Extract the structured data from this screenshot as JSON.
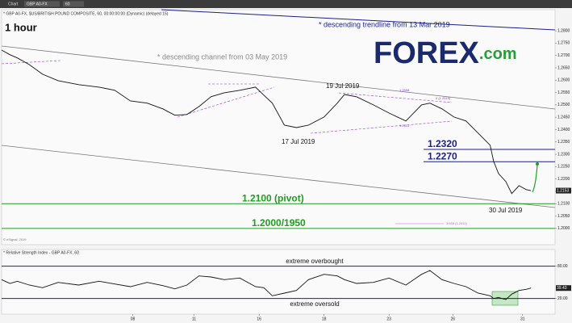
{
  "toolbar": {
    "items": [
      "Chart",
      "GBP A0-FX",
      "60"
    ]
  },
  "logo": {
    "brand": "FOREX",
    "suffix": ".com"
  },
  "chart_data": [
    {
      "type": "line",
      "header": "* GBP A0-FX, $US/BRITISH POUND COMPOSITE, 60, 00:00:00:00 (Dynamic) (delayed 15)",
      "title": "1 hour",
      "x": [
        0,
        7,
        13,
        23,
        34,
        47,
        64,
        81,
        94,
        107,
        121,
        134,
        144,
        154,
        164,
        174,
        185,
        198,
        211,
        218,
        225,
        235,
        245,
        255,
        268,
        279,
        285,
        295,
        309,
        322,
        336,
        349,
        356,
        366,
        376,
        386,
        396,
        406,
        409,
        413,
        419,
        424,
        430,
        436,
        440
      ],
      "series": [
        {
          "color": "#111111",
          "values": [
            1.2722,
            1.2703,
            1.269,
            1.2663,
            1.2624,
            1.2598,
            1.2582,
            1.2572,
            1.2559,
            1.2516,
            1.2507,
            1.2484,
            1.2458,
            1.2461,
            1.2493,
            1.2533,
            1.2549,
            1.2559,
            1.2572,
            1.2539,
            1.2507,
            1.2418,
            1.2408,
            1.2418,
            1.2451,
            1.2507,
            1.2542,
            1.2533,
            1.25,
            1.2467,
            1.2435,
            1.25,
            1.2507,
            1.2484,
            1.2451,
            1.2435,
            1.2386,
            1.2337,
            1.2271,
            1.2222,
            1.219,
            1.2141,
            1.2173,
            1.2157,
            1.2153
          ]
        }
      ],
      "xlim": [
        0,
        460
      ],
      "ylim": [
        1.1944,
        1.2882
      ],
      "yticks": [
        {
          "value": 1.2,
          "label": "1.2000"
        },
        {
          "value": 1.205,
          "label": "1.2050"
        },
        {
          "value": 1.21,
          "label": "1.2100"
        },
        {
          "value": 1.215,
          "label": "1.2150"
        },
        {
          "value": 1.22,
          "label": "1.2200"
        },
        {
          "value": 1.225,
          "label": "1.2250"
        },
        {
          "value": 1.23,
          "label": "1.2300"
        },
        {
          "value": 1.235,
          "label": "1.2350"
        },
        {
          "value": 1.24,
          "label": "1.2400"
        },
        {
          "value": 1.245,
          "label": "1.2450"
        },
        {
          "value": 1.25,
          "label": "1.2500"
        },
        {
          "value": 1.255,
          "label": "1.2550"
        },
        {
          "value": 1.26,
          "label": "1.2600"
        },
        {
          "value": 1.265,
          "label": "1.2650"
        },
        {
          "value": 1.27,
          "label": "1.2700"
        },
        {
          "value": 1.275,
          "label": "1.2750"
        },
        {
          "value": 1.28,
          "label": "1.2800"
        }
      ],
      "levels": [
        {
          "value": 1.232,
          "label": "1.2320",
          "color": "#1b1f8a"
        },
        {
          "value": 1.227,
          "label": "1.2270",
          "color": "#1b1f8a"
        },
        {
          "value": 1.21,
          "label": "1.2100 (pivot)",
          "color": "#1e9e1e"
        },
        {
          "value": 1.2,
          "label": "1.2000/1950",
          "color": "#1e9e1e"
        }
      ],
      "annotations": [
        "* descending trendline from 13 Mar 2019",
        "* descending channel from 03 May 2019",
        "19 Jul 2019",
        "17 Jul 2019",
        "30 Jul 2019",
        "1.2558",
        "0 (1.2519)",
        "1.2414",
        "3.618 (1.2011)"
      ],
      "copyright": "© eSignal, 2019"
    },
    {
      "type": "line",
      "header": "* Relative Strength Index - GBP A0-FX, 60",
      "x": [
        0,
        7,
        13,
        23,
        34,
        47,
        64,
        81,
        94,
        107,
        121,
        134,
        144,
        154,
        164,
        174,
        185,
        198,
        211,
        218,
        225,
        235,
        245,
        255,
        268,
        279,
        285,
        295,
        309,
        322,
        336,
        349,
        356,
        366,
        376,
        386,
        396,
        406,
        409,
        413,
        419,
        424,
        430,
        436,
        440
      ],
      "series": [
        {
          "color": "#111111",
          "values": [
            55,
            48,
            52,
            45,
            40,
            50,
            45,
            52,
            47,
            42,
            50,
            44,
            38,
            45,
            62,
            60,
            55,
            58,
            42,
            40,
            25,
            30,
            35,
            55,
            65,
            62,
            55,
            48,
            50,
            58,
            45,
            65,
            72,
            55,
            48,
            42,
            30,
            25,
            20,
            22,
            18,
            28,
            35,
            37,
            39.43
          ]
        }
      ],
      "xlim": [
        0,
        460
      ],
      "ylim": [
        -4.5,
        102
      ],
      "xticks": [
        {
          "value": 109,
          "label": "08"
        },
        {
          "value": 160,
          "label": "11"
        },
        {
          "value": 214,
          "label": "16"
        },
        {
          "value": 268,
          "label": "18"
        },
        {
          "value": 322,
          "label": "23"
        },
        {
          "value": 375,
          "label": "26"
        },
        {
          "value": 433,
          "label": "31"
        }
      ],
      "yticks": [
        {
          "value": 80,
          "label": "80.00"
        },
        {
          "value": 20,
          "label": "20.00"
        }
      ],
      "levels": [
        {
          "value": 80,
          "label": "extreme overbought",
          "color": "#1b1f8a"
        },
        {
          "value": 20,
          "label": "extreme oversold",
          "color": "#1b1f8a"
        }
      ]
    }
  ]
}
